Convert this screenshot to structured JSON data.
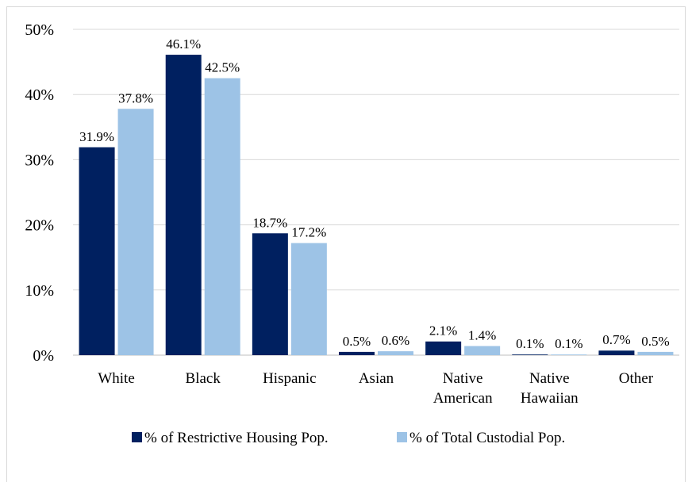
{
  "chart_data": {
    "type": "bar",
    "categories": [
      [
        "White"
      ],
      [
        "Black"
      ],
      [
        "Hispanic"
      ],
      [
        "Asian"
      ],
      [
        "Native",
        "American"
      ],
      [
        "Native",
        "Hawaiian"
      ],
      [
        "Other"
      ]
    ],
    "series": [
      {
        "name": "% of Restrictive Housing Pop.",
        "color": "#002060",
        "values": [
          31.9,
          46.1,
          18.7,
          0.5,
          2.1,
          0.1,
          0.7
        ],
        "labels": [
          "31.9%",
          "46.1%",
          "18.7%",
          "0.5%",
          "2.1%",
          "0.1%",
          "0.7%"
        ]
      },
      {
        "name": "% of Total Custodial Pop.",
        "color": "#9dc3e6",
        "values": [
          37.8,
          42.5,
          17.2,
          0.6,
          1.4,
          0.1,
          0.5
        ],
        "labels": [
          "37.8%",
          "42.5%",
          "17.2%",
          "0.6%",
          "1.4%",
          "0.1%",
          "0.5%"
        ]
      }
    ],
    "ylim": [
      0,
      50
    ],
    "yticks": [
      "0%",
      "10%",
      "20%",
      "30%",
      "40%",
      "50%"
    ],
    "grid": true,
    "legend_position": "bottom"
  }
}
